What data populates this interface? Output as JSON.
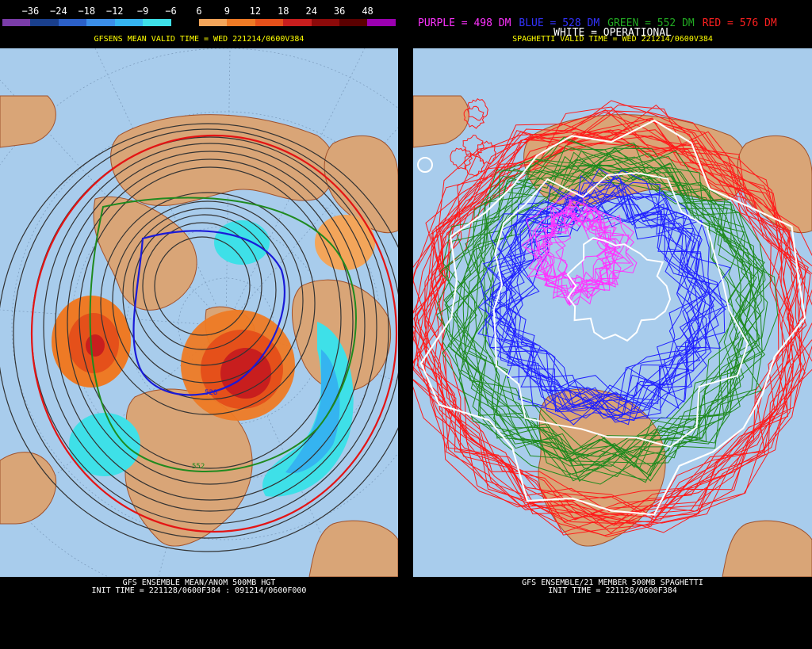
{
  "left": {
    "colorbar_labels": [
      "−36",
      "−24",
      "−18",
      "−12",
      "−9",
      "−6",
      "6",
      "9",
      "12",
      "18",
      "24",
      "36",
      "48"
    ],
    "colorbar_colors": [
      "#7a3ca8",
      "#1a3f8c",
      "#2b60c8",
      "#3b8ee8",
      "#35b4f0",
      "#3ee0e8",
      "#000000",
      "#f3a55a",
      "#ee7a25",
      "#e5501a",
      "#c81e1e",
      "#8c0a0a",
      "#5a0000",
      "#9b00b0"
    ],
    "subtitle": "GFSENS MEAN VALID TIME = WED 221214/0600V384",
    "caption_line1": "GFS ENSEMBLE MEAN/ANOM 500MB HGT",
    "caption_line2": "INIT TIME = 221128/0600F384 : 091214/0600F000",
    "contour_label_blue": "528",
    "contour_label_green": "552"
  },
  "right": {
    "legend": [
      {
        "text": "PURPLE = 498 DM",
        "color": "#ff33ff"
      },
      {
        "text": "BLUE = 528 DM",
        "color": "#3333ff"
      },
      {
        "text": "GREEN = 552 DM",
        "color": "#22aa22"
      },
      {
        "text": "RED = 576 DM",
        "color": "#ff2020"
      }
    ],
    "legend2": "WHITE = OPERATIONAL",
    "subtitle": "SPAGHETTI VALID TIME = WED 221214/0600V384",
    "caption_line1": "GFS ENSEMBLE/21 MEMBER 500MB SPAGHETTI",
    "caption_line2": "INIT TIME = 221128/0600F384"
  },
  "colors": {
    "ocean": "#a8ccec",
    "land": "#d9a577",
    "coast": "#a0522d"
  }
}
